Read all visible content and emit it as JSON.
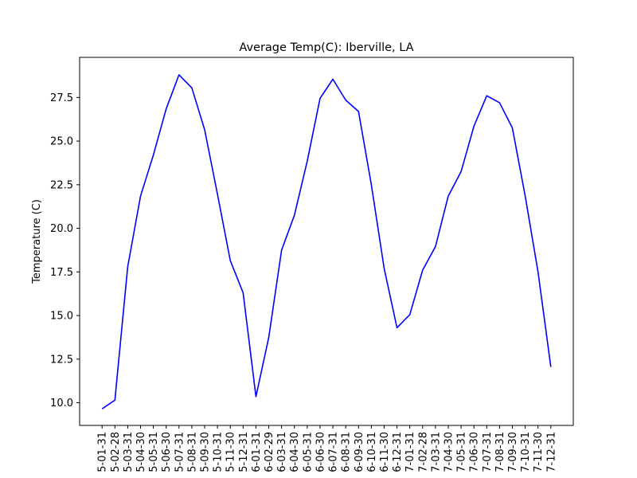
{
  "chart_data": {
    "type": "line",
    "title": "Average Temp(C): Iberville, LA",
    "xlabel": "",
    "ylabel": "Temperature (C)",
    "ylim": [
      8.7,
      29.8
    ],
    "yticks": [
      "10.0",
      "12.5",
      "15.0",
      "17.5",
      "20.0",
      "22.5",
      "25.0",
      "27.5"
    ],
    "ytick_values": [
      10.0,
      12.5,
      15.0,
      17.5,
      20.0,
      22.5,
      25.0,
      27.5
    ],
    "categories": [
      "5-01-31",
      "5-02-28",
      "5-03-31",
      "5-04-30",
      "5-05-31",
      "5-06-30",
      "5-07-31",
      "5-08-31",
      "5-09-30",
      "5-10-31",
      "5-11-30",
      "5-12-31",
      "6-01-31",
      "6-02-29",
      "6-03-31",
      "6-04-30",
      "6-05-31",
      "6-06-30",
      "6-07-31",
      "6-08-31",
      "6-09-30",
      "6-10-31",
      "6-11-30",
      "6-12-31",
      "7-01-31",
      "7-02-28",
      "7-03-31",
      "7-04-30",
      "7-05-31",
      "7-06-30",
      "7-07-31",
      "7-08-31",
      "7-09-30",
      "7-10-31",
      "7-11-30",
      "7-12-31"
    ],
    "series": [
      {
        "color": "#0000ff",
        "values": [
          9.65,
          10.15,
          17.8,
          21.85,
          24.2,
          26.85,
          28.8,
          28.05,
          25.65,
          21.95,
          18.15,
          16.3,
          10.35,
          13.75,
          18.75,
          20.75,
          23.85,
          27.45,
          28.55,
          27.35,
          26.7,
          22.5,
          17.7,
          14.3,
          15.05,
          17.6,
          18.95,
          21.85,
          23.25,
          25.85,
          27.6,
          27.2,
          25.75,
          21.85,
          17.5,
          12.05
        ]
      }
    ],
    "grid": false,
    "legend": "none"
  }
}
